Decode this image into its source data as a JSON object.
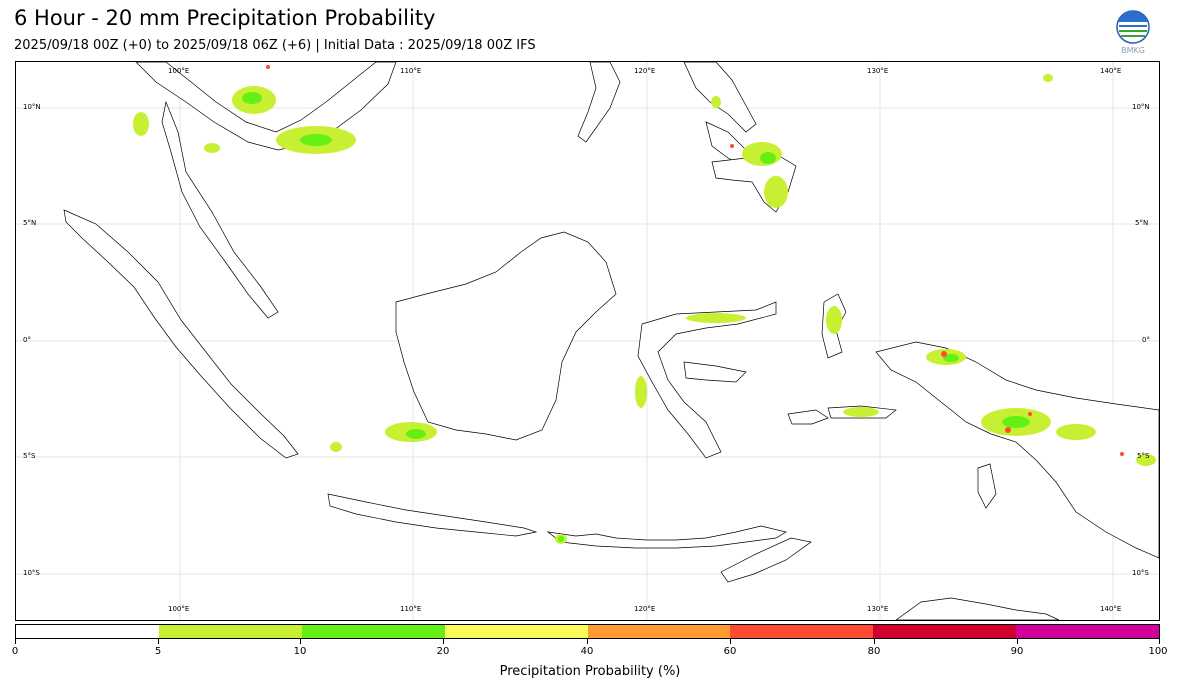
{
  "header": {
    "title": "6 Hour - 20 mm Precipitation Probability",
    "subtitle": "2025/09/18 00Z (+0) to 2025/09/18 06Z (+6) | Initial Data : 2025/09/18 00Z IFS",
    "logo_text": "BMKG"
  },
  "map": {
    "lon_range": [
      95,
      142
    ],
    "lat_range": [
      -12,
      12
    ],
    "lon_ticks": [
      "100°E",
      "110°E",
      "120°E",
      "130°E",
      "140°E"
    ],
    "lat_ticks": [
      "10°N",
      "5°N",
      "0°",
      "5°S",
      "10°S"
    ],
    "grid": true
  },
  "colorbar": {
    "title": "Precipitation Probability (%)",
    "tick_labels": [
      "0",
      "5",
      "10",
      "20",
      "40",
      "60",
      "80",
      "90",
      "100"
    ],
    "colors": [
      "#ffffff",
      "#c8f032",
      "#64f014",
      "#fafa5a",
      "#ff9b32",
      "#ff4b32",
      "#d2002d",
      "#d2009b"
    ]
  }
}
